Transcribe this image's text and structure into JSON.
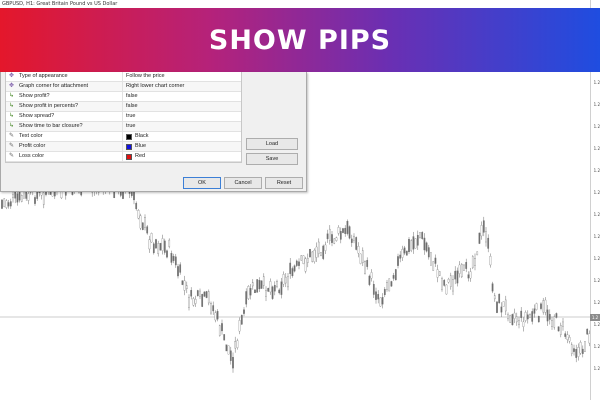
{
  "window": {
    "chart_title": "GBPUSD, H1:  Great Britain Pound vs US Dollar"
  },
  "banner": {
    "title": "SHOW PIPS"
  },
  "dialog": {
    "parameters": [
      {
        "icon": "settings-icon",
        "name": "Type of appearance",
        "value": "Follow the price"
      },
      {
        "icon": "settings-icon",
        "name": "Graph corner for attachment",
        "value": "Right lower chart corner"
      },
      {
        "icon": "boolean-icon",
        "name": "Show profit?",
        "value": "false"
      },
      {
        "icon": "boolean-icon",
        "name": "Show profit in percents?",
        "value": "false"
      },
      {
        "icon": "boolean-icon",
        "name": "Show spread?",
        "value": "true"
      },
      {
        "icon": "boolean-icon",
        "name": "Show time to bar closure?",
        "value": "true"
      },
      {
        "icon": "color-param-icon",
        "name": "Text color",
        "value": "Black",
        "swatch": "#000000"
      },
      {
        "icon": "color-param-icon",
        "name": "Profit color",
        "value": "Blue",
        "swatch": "#1010e0"
      },
      {
        "icon": "color-param-icon",
        "name": "Loss color",
        "value": "Red",
        "swatch": "#e01010"
      }
    ],
    "load_label": "Load",
    "save_label": "Save",
    "ok_label": "OK",
    "cancel_label": "Cancel",
    "reset_label": "Reset"
  },
  "price_scale": {
    "ticks": [
      "1.2",
      "1.2",
      "1.2",
      "1.2",
      "1.2",
      "1.2",
      "1.2",
      "1.2",
      "1.2",
      "1.2",
      "1.2",
      "1.2",
      "1.2",
      "1.2"
    ],
    "current_marker": "1.2"
  },
  "colors": {
    "banner_start": "#e4172b",
    "banner_end": "#1f4de0",
    "candle": "#6e6e6e",
    "current_price_line": "#9a9a9a"
  }
}
